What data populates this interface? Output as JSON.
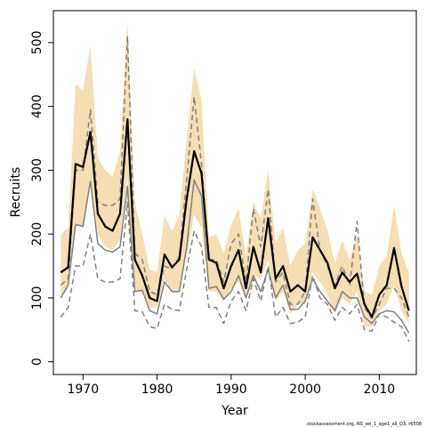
{
  "chart_data": {
    "type": "line",
    "xlabel": "Year",
    "ylabel": "Recruits",
    "xlim": [
      1966,
      2015
    ],
    "ylim": [
      -20,
      550
    ],
    "x_ticks": [
      1970,
      1980,
      1990,
      2000,
      2010
    ],
    "y_ticks": [
      0,
      100,
      200,
      300,
      400,
      500
    ],
    "grid": false,
    "years": [
      1967,
      1968,
      1969,
      1970,
      1971,
      1972,
      1973,
      1974,
      1975,
      1976,
      1977,
      1978,
      1979,
      1980,
      1981,
      1982,
      1983,
      1984,
      1985,
      1986,
      1987,
      1988,
      1989,
      1990,
      1991,
      1992,
      1993,
      1994,
      1995,
      1996,
      1997,
      1998,
      1999,
      2000,
      2001,
      2002,
      2003,
      2004,
      2005,
      2006,
      2007,
      2008,
      2009,
      2010,
      2011,
      2012,
      2013,
      2014
    ],
    "ci_band": {
      "color": "#f5deb3",
      "upper": [
        200,
        210,
        435,
        425,
        495,
        320,
        300,
        290,
        330,
        535,
        250,
        200,
        145,
        140,
        230,
        205,
        230,
        350,
        460,
        410,
        195,
        200,
        170,
        215,
        240,
        165,
        250,
        225,
        300,
        185,
        210,
        150,
        175,
        185,
        270,
        240,
        205,
        155,
        190,
        160,
        200,
        110,
        105,
        150,
        165,
        245,
        170,
        140
      ],
      "lower": [
        100,
        115,
        215,
        210,
        285,
        200,
        180,
        175,
        190,
        290,
        110,
        110,
        85,
        85,
        130,
        110,
        110,
        165,
        230,
        210,
        110,
        110,
        95,
        115,
        125,
        100,
        135,
        130,
        160,
        95,
        110,
        75,
        90,
        90,
        140,
        125,
        105,
        75,
        100,
        90,
        110,
        55,
        55,
        80,
        90,
        120,
        80,
        60
      ]
    },
    "series": [
      {
        "role": "estimate",
        "color": "#000000",
        "style": "solid",
        "values": [
          140,
          148,
          310,
          305,
          360,
          232,
          212,
          205,
          232,
          380,
          160,
          135,
          100,
          95,
          168,
          148,
          160,
          255,
          330,
          295,
          160,
          155,
          115,
          150,
          175,
          115,
          180,
          140,
          225,
          130,
          150,
          110,
          120,
          110,
          195,
          175,
          155,
          115,
          140,
          125,
          138,
          90,
          70,
          105,
          120,
          178,
          118,
          80
        ]
      },
      {
        "role": "comparison-solid",
        "color": "#808080",
        "style": "solid",
        "values": [
          100,
          120,
          215,
          212,
          283,
          185,
          175,
          172,
          180,
          275,
          110,
          112,
          80,
          75,
          125,
          110,
          110,
          180,
          285,
          260,
          115,
          118,
          98,
          110,
          135,
          100,
          135,
          110,
          145,
          100,
          120,
          82,
          82,
          95,
          130,
          110,
          95,
          80,
          110,
          100,
          100,
          70,
          60,
          75,
          80,
          78,
          65,
          45
        ]
      },
      {
        "role": "comparison-dashed-upper",
        "color": "#808080",
        "style": "dashed",
        "values": [
          120,
          130,
          300,
          300,
          395,
          250,
          245,
          245,
          255,
          510,
          170,
          160,
          110,
          105,
          150,
          145,
          165,
          285,
          415,
          310,
          160,
          160,
          125,
          185,
          200,
          125,
          240,
          180,
          270,
          125,
          140,
          90,
          90,
          110,
          255,
          175,
          150,
          120,
          150,
          120,
          220,
          85,
          68,
          90,
          115,
          115,
          100,
          70
        ]
      },
      {
        "role": "comparison-dashed-lower",
        "color": "#808080",
        "style": "dashed",
        "values": [
          70,
          85,
          150,
          150,
          200,
          130,
          125,
          125,
          130,
          250,
          80,
          78,
          55,
          52,
          90,
          82,
          80,
          145,
          205,
          180,
          85,
          85,
          60,
          95,
          110,
          80,
          130,
          95,
          150,
          70,
          85,
          60,
          62,
          70,
          135,
          100,
          90,
          65,
          85,
          75,
          90,
          50,
          48,
          75,
          70,
          62,
          55,
          32
        ]
      }
    ]
  },
  "footnote": "stockassessment.org, NS_sei_1_age1_all_Q3, r6508"
}
